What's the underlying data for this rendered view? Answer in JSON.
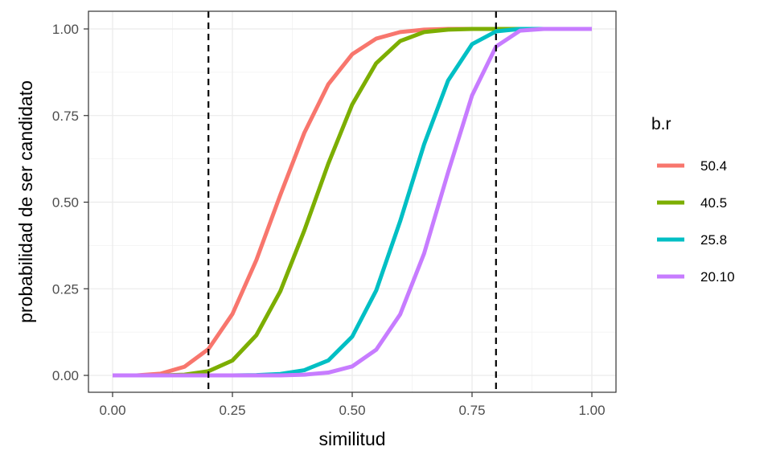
{
  "chart_data": {
    "type": "line",
    "xlabel": "similitud",
    "ylabel": "probabilidad de ser candidato",
    "xlim": [
      0,
      1
    ],
    "ylim": [
      0,
      1
    ],
    "x_ticks": [
      "0.00",
      "0.25",
      "0.50",
      "0.75",
      "1.00"
    ],
    "y_ticks": [
      "0.00",
      "0.25",
      "0.50",
      "0.75",
      "1.00"
    ],
    "grid": true,
    "legend": {
      "title": "b.r",
      "position": "right"
    },
    "vlines": [
      0.2,
      0.8
    ],
    "x": [
      0.0,
      0.05,
      0.1,
      0.15,
      0.2,
      0.25,
      0.3,
      0.35,
      0.4,
      0.45,
      0.5,
      0.55,
      0.6,
      0.65,
      0.7,
      0.75,
      0.8,
      0.85,
      0.9,
      0.95,
      1.0
    ],
    "series": [
      {
        "name": "50.4",
        "color": "#F8766D",
        "values": [
          0.0,
          0.0,
          0.005,
          0.025,
          0.076,
          0.177,
          0.333,
          0.521,
          0.7,
          0.84,
          0.927,
          0.972,
          0.991,
          0.998,
          1.0,
          1.0,
          1.0,
          1.0,
          1.0,
          1.0,
          1.0
        ]
      },
      {
        "name": "40.5",
        "color": "#7CAE00",
        "values": [
          0.0,
          0.0,
          0.0,
          0.002,
          0.012,
          0.043,
          0.116,
          0.243,
          0.418,
          0.611,
          0.782,
          0.901,
          0.965,
          0.991,
          0.998,
          1.0,
          1.0,
          1.0,
          1.0,
          1.0,
          1.0
        ]
      },
      {
        "name": "25.8",
        "color": "#00BFC4",
        "values": [
          0.0,
          0.0,
          0.0,
          0.0,
          0.0,
          0.0,
          0.001,
          0.004,
          0.015,
          0.043,
          0.112,
          0.245,
          0.445,
          0.667,
          0.851,
          0.956,
          0.993,
          1.0,
          1.0,
          1.0,
          1.0
        ]
      },
      {
        "name": "20.10",
        "color": "#C77CFF",
        "values": [
          0.0,
          0.0,
          0.0,
          0.0,
          0.0,
          0.0,
          0.0,
          0.0,
          0.002,
          0.008,
          0.026,
          0.074,
          0.176,
          0.352,
          0.586,
          0.808,
          0.949,
          0.995,
          1.0,
          1.0,
          1.0
        ]
      }
    ]
  }
}
